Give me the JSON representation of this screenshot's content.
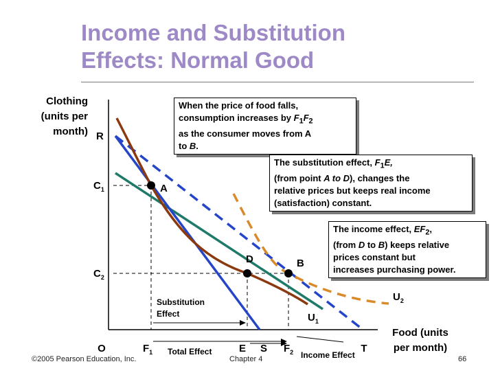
{
  "slide": {
    "title_line1": "Income and Substitution",
    "title_line2": "Effects: Normal Good"
  },
  "axes": {
    "y_label_lines": [
      "Clothing",
      "(units per",
      "month)"
    ],
    "x_label_lines": [
      "Food (units",
      "per month)"
    ],
    "origin": "O"
  },
  "labels": {
    "R": "R",
    "C": "C",
    "C1_sub": "1",
    "C2_sub": "2",
    "F": "F",
    "F1_sub": "1",
    "F2_sub": "2",
    "E": "E",
    "S": "S",
    "T": "T",
    "A": "A",
    "B": "B",
    "D": "D",
    "U": "U",
    "U1_sub": "1",
    "U2_sub": "2",
    "substitution_effect_line1": "Substitution",
    "substitution_effect_line2": "Effect",
    "total_effect": "Total Effect",
    "income_effect": "Income Effect"
  },
  "callouts": {
    "price_fall": {
      "line1": "When the price of food falls,",
      "line2a": "consumption increases by ",
      "line2b": "F",
      "line2c": "1",
      "line2d": "F",
      "line2e": "2",
      "line3": "as the consumer moves from  A",
      "line4a": "to ",
      "line4b": "B",
      "line4c": "."
    },
    "substitution": {
      "line1a": "The substitution effect, ",
      "line1b": "F",
      "line1c": "1",
      "line1d": "E,",
      "line2a": "(from point ",
      "line2b": "A to D",
      "line2c": "),  changes the",
      "line3": "relative prices but keeps real income",
      "line4": "(satisfaction) constant."
    },
    "income": {
      "line1a": "The income effect, ",
      "line1b": "EF",
      "line1c": "2",
      "line1d": ",",
      "line2a": "(from ",
      "line2b": "D",
      "line2c": " to ",
      "line2d": "B",
      "line2e": ") keeps relative",
      "line3": "prices constant but",
      "line4": "increases purchasing power."
    }
  },
  "footer": {
    "copyright": "©2005 Pearson Education, Inc.",
    "chapter": "Chapter 4",
    "page": "66"
  },
  "colors": {
    "title": "#9d89c6",
    "budget_line": "#2545c8",
    "compensated_line": "#1f7a6a",
    "indifference_u1": "#8b3a0f",
    "indifference_u2": "#d98a2b"
  }
}
